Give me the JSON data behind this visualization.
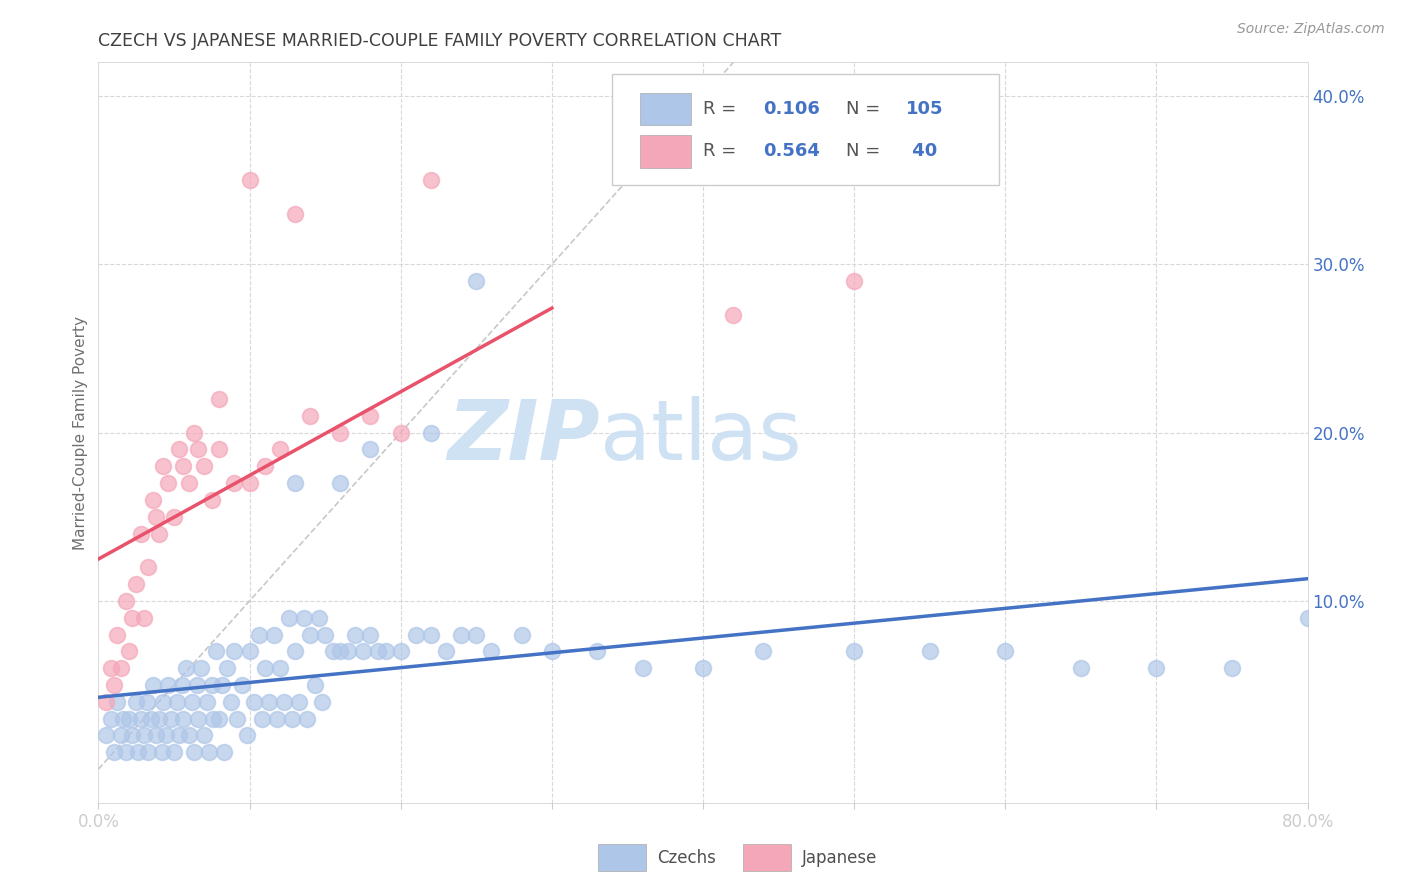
{
  "title": "CZECH VS JAPANESE MARRIED-COUPLE FAMILY POVERTY CORRELATION CHART",
  "source": "Source: ZipAtlas.com",
  "ylabel": "Married-Couple Family Poverty",
  "xlim": [
    0.0,
    0.8
  ],
  "ylim": [
    -0.02,
    0.42
  ],
  "czech_color": "#aec6e8",
  "japanese_color": "#f4a7b9",
  "czech_line_color": "#4472c4",
  "japanese_line_color": "#e8526a",
  "diagonal_color": "#c8c8c8",
  "watermark_color": "#cfe2f3",
  "czech_R": 0.106,
  "czech_N": 105,
  "japanese_R": 0.564,
  "japanese_N": 40,
  "legend_czech_label": "Czechs",
  "legend_japanese_label": "Japanese",
  "background_color": "#ffffff",
  "grid_color": "#d8d8d8",
  "title_color": "#404040",
  "axis_label_color": "#707070",
  "tick_label_color": "#4472c4",
  "czech_scatter_x": [
    0.005,
    0.008,
    0.01,
    0.012,
    0.015,
    0.016,
    0.018,
    0.02,
    0.022,
    0.025,
    0.026,
    0.028,
    0.03,
    0.032,
    0.033,
    0.035,
    0.036,
    0.038,
    0.04,
    0.042,
    0.043,
    0.045,
    0.046,
    0.048,
    0.05,
    0.052,
    0.053,
    0.055,
    0.056,
    0.058,
    0.06,
    0.062,
    0.063,
    0.065,
    0.066,
    0.068,
    0.07,
    0.072,
    0.073,
    0.075,
    0.076,
    0.078,
    0.08,
    0.082,
    0.083,
    0.085,
    0.088,
    0.09,
    0.092,
    0.095,
    0.098,
    0.1,
    0.103,
    0.106,
    0.108,
    0.11,
    0.113,
    0.116,
    0.118,
    0.12,
    0.123,
    0.126,
    0.128,
    0.13,
    0.133,
    0.136,
    0.138,
    0.14,
    0.143,
    0.146,
    0.148,
    0.15,
    0.155,
    0.16,
    0.165,
    0.17,
    0.175,
    0.18,
    0.185,
    0.19,
    0.2,
    0.21,
    0.22,
    0.23,
    0.24,
    0.25,
    0.26,
    0.28,
    0.3,
    0.33,
    0.36,
    0.4,
    0.44,
    0.5,
    0.55,
    0.6,
    0.65,
    0.7,
    0.75,
    0.8,
    0.25,
    0.13,
    0.16,
    0.18,
    0.22
  ],
  "czech_scatter_y": [
    0.02,
    0.03,
    0.01,
    0.04,
    0.02,
    0.03,
    0.01,
    0.03,
    0.02,
    0.04,
    0.01,
    0.03,
    0.02,
    0.04,
    0.01,
    0.03,
    0.05,
    0.02,
    0.03,
    0.01,
    0.04,
    0.02,
    0.05,
    0.03,
    0.01,
    0.04,
    0.02,
    0.05,
    0.03,
    0.06,
    0.02,
    0.04,
    0.01,
    0.05,
    0.03,
    0.06,
    0.02,
    0.04,
    0.01,
    0.05,
    0.03,
    0.07,
    0.03,
    0.05,
    0.01,
    0.06,
    0.04,
    0.07,
    0.03,
    0.05,
    0.02,
    0.07,
    0.04,
    0.08,
    0.03,
    0.06,
    0.04,
    0.08,
    0.03,
    0.06,
    0.04,
    0.09,
    0.03,
    0.07,
    0.04,
    0.09,
    0.03,
    0.08,
    0.05,
    0.09,
    0.04,
    0.08,
    0.07,
    0.07,
    0.07,
    0.08,
    0.07,
    0.08,
    0.07,
    0.07,
    0.07,
    0.08,
    0.08,
    0.07,
    0.08,
    0.08,
    0.07,
    0.08,
    0.07,
    0.07,
    0.06,
    0.06,
    0.07,
    0.07,
    0.07,
    0.07,
    0.06,
    0.06,
    0.06,
    0.09,
    0.29,
    0.17,
    0.17,
    0.19,
    0.2
  ],
  "japanese_scatter_x": [
    0.005,
    0.008,
    0.01,
    0.012,
    0.015,
    0.018,
    0.02,
    0.022,
    0.025,
    0.028,
    0.03,
    0.033,
    0.036,
    0.038,
    0.04,
    0.043,
    0.046,
    0.05,
    0.053,
    0.056,
    0.06,
    0.063,
    0.066,
    0.07,
    0.075,
    0.08,
    0.09,
    0.1,
    0.11,
    0.12,
    0.13,
    0.14,
    0.16,
    0.18,
    0.2,
    0.22,
    0.1,
    0.42,
    0.5,
    0.08
  ],
  "japanese_scatter_y": [
    0.04,
    0.06,
    0.05,
    0.08,
    0.06,
    0.1,
    0.07,
    0.09,
    0.11,
    0.14,
    0.09,
    0.12,
    0.16,
    0.15,
    0.14,
    0.18,
    0.17,
    0.15,
    0.19,
    0.18,
    0.17,
    0.2,
    0.19,
    0.18,
    0.16,
    0.19,
    0.17,
    0.17,
    0.18,
    0.19,
    0.33,
    0.21,
    0.2,
    0.21,
    0.2,
    0.35,
    0.35,
    0.27,
    0.29,
    0.22
  ]
}
